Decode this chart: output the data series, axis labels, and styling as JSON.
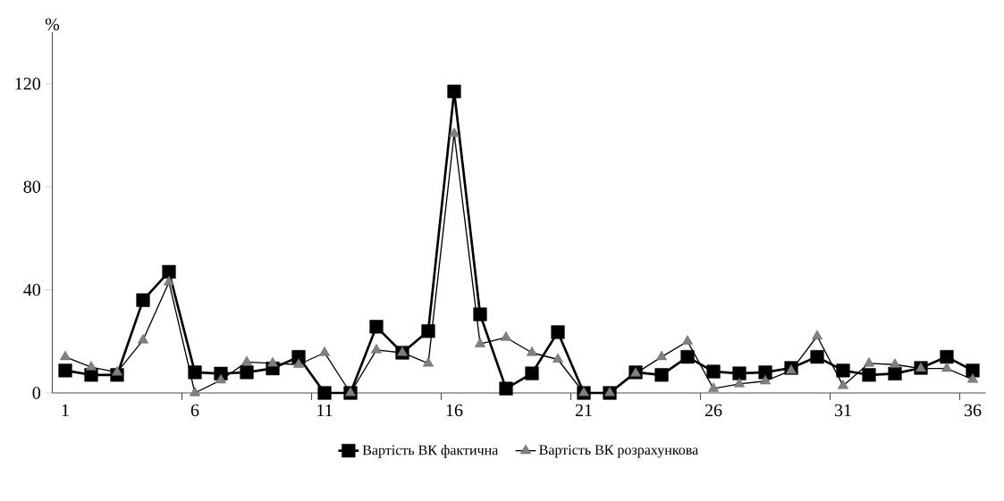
{
  "chart_data": {
    "type": "line",
    "ylabel": "%",
    "categories": [
      "1",
      null,
      null,
      null,
      null,
      "6",
      null,
      null,
      null,
      null,
      "11",
      null,
      null,
      null,
      null,
      "16",
      null,
      null,
      null,
      null,
      "21",
      null,
      null,
      null,
      null,
      "26",
      null,
      null,
      null,
      null,
      "31",
      null,
      null,
      null,
      null,
      "36"
    ],
    "series": [
      {
        "name": "Вартість ВК фактична",
        "color": "#000000",
        "marker": "square",
        "values": [
          8.7,
          7,
          7,
          36,
          47,
          8,
          7.5,
          8,
          9.5,
          14,
          0,
          0,
          25.7,
          15.6,
          24,
          117,
          30.5,
          1.7,
          7.6,
          23.6,
          0,
          0,
          8,
          7,
          14,
          8.3,
          7.6,
          8,
          9.7,
          14,
          8.7,
          7,
          7.5,
          9.7,
          14,
          8.7
        ]
      },
      {
        "name": "Вартість ВК розрахункова",
        "color": "#808080",
        "marker": "triangle",
        "values": [
          14,
          10,
          8,
          20.5,
          43,
          0,
          5,
          12,
          11.5,
          11,
          15.6,
          0,
          16.7,
          15.6,
          11.5,
          100.6,
          19,
          21.5,
          15.6,
          13,
          0,
          0,
          7.6,
          14,
          20,
          1.7,
          3.5,
          4.6,
          8.7,
          22,
          2.8,
          11.5,
          11,
          9.5,
          9.5,
          5.2
        ]
      }
    ],
    "ylim": [
      0,
      140
    ],
    "yticks": [
      0,
      40,
      80,
      120
    ],
    "grid": false,
    "legend": "bottom",
    "line_style": "solid"
  }
}
